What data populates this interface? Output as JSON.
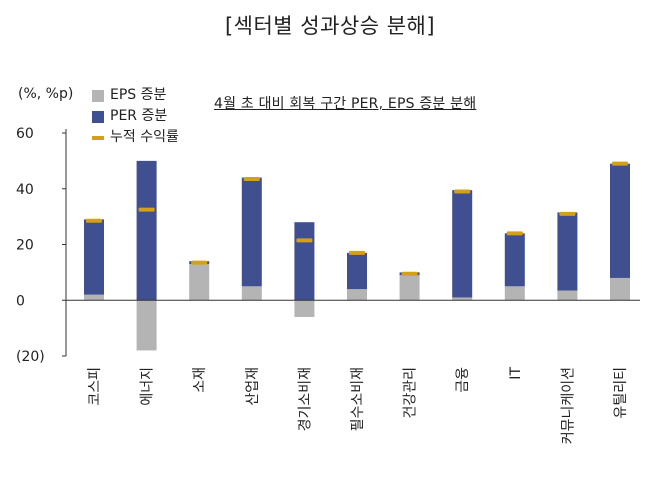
{
  "chart_data": {
    "type": "bar",
    "title": "[섹터별 성과상승 분해]",
    "subtitle": "4월 초 대비 회복 구간 PER, EPS 증분 분해",
    "ylabel": "(%, %p)",
    "ylim": [
      -20,
      60
    ],
    "yticks": [
      60,
      40,
      20,
      0,
      -20
    ],
    "ytick_labels": [
      "60",
      "40",
      "20",
      "0",
      "(20)"
    ],
    "categories": [
      "코스피",
      "에너지",
      "소재",
      "산업재",
      "경기소비재",
      "필수소비재",
      "건강관리",
      "금융",
      "IT",
      "커뮤니케이션",
      "유틸리티"
    ],
    "series": [
      {
        "name": "EPS 증분",
        "kind": "bar",
        "color": "#b4b4b4",
        "values": [
          2,
          -18,
          13,
          5,
          -6,
          4,
          9,
          1,
          5,
          3.5,
          8
        ]
      },
      {
        "name": "PER 증분",
        "kind": "bar",
        "color": "#3f4f8f",
        "values": [
          27,
          50,
          1,
          39,
          28,
          13,
          1,
          38.5,
          19,
          28,
          41
        ]
      },
      {
        "name": "누적 수익률",
        "kind": "marker",
        "color": "#d4a017",
        "values": [
          28.5,
          32.5,
          13.5,
          43.5,
          21.5,
          17,
          9.5,
          39,
          24,
          31,
          49
        ]
      }
    ]
  }
}
